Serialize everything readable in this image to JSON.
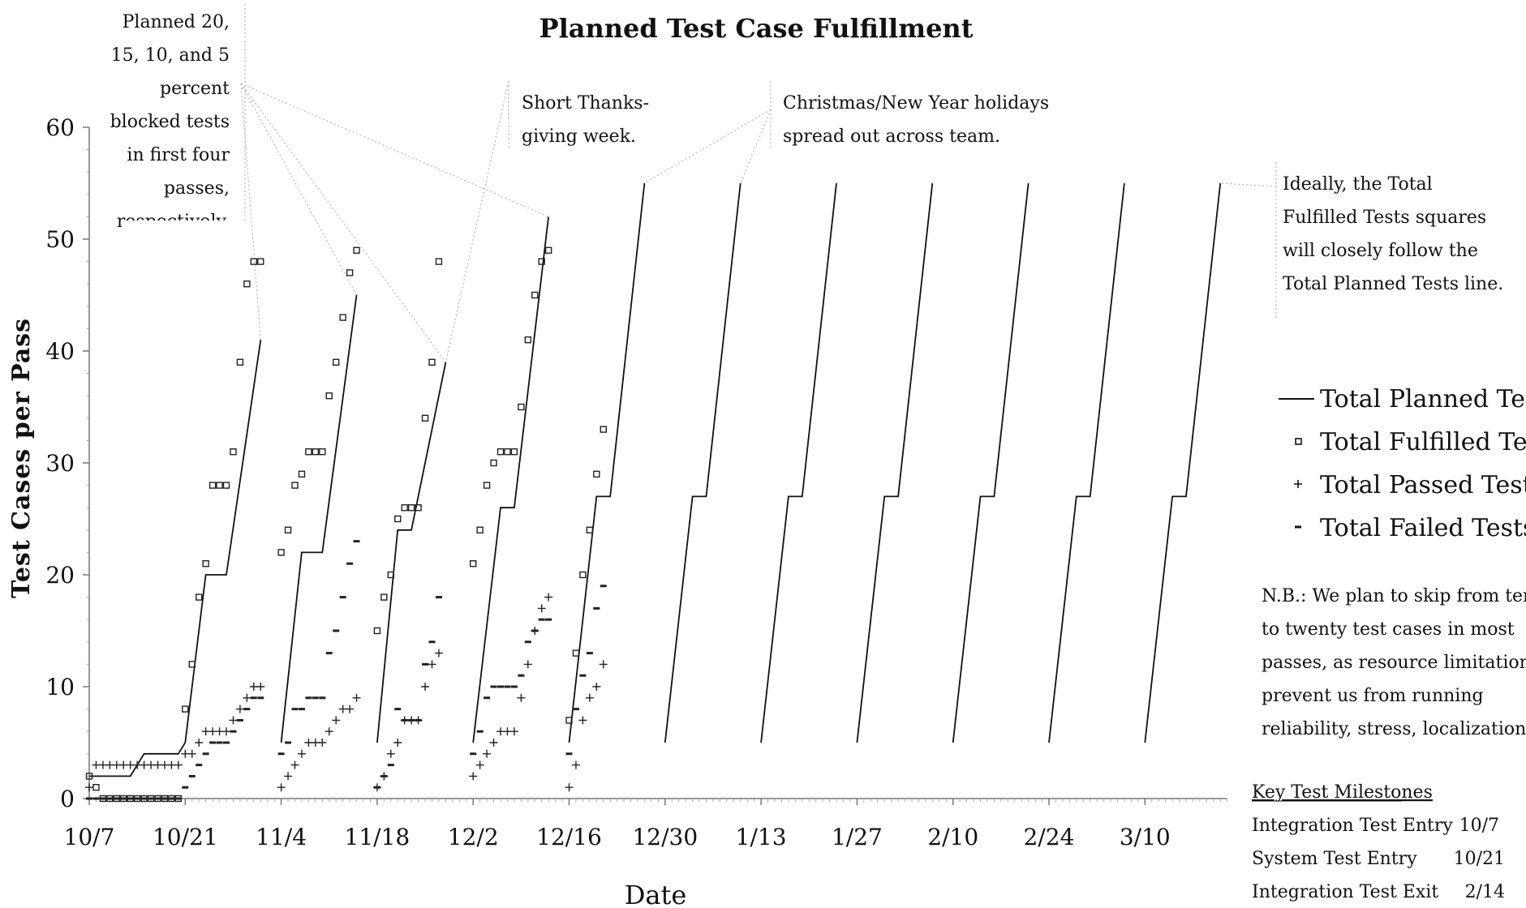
{
  "chart_data": {
    "type": "line",
    "title": "Planned Test Case Fulfillment",
    "xlabel": "Date",
    "ylabel": "Test Cases per Pass",
    "ylim": [
      0,
      60
    ],
    "yticks": [
      0,
      10,
      20,
      30,
      40,
      50,
      60
    ],
    "xticks": [
      "10/7",
      "10/21",
      "11/4",
      "11/18",
      "12/2",
      "12/16",
      "12/30",
      "1/13",
      "1/27",
      "2/10",
      "2/24",
      "3/10"
    ],
    "x_unit": "days from 10/7",
    "legend": {
      "placement": "right",
      "entries": [
        {
          "marker": "line",
          "label": "Total Planned Tests"
        },
        {
          "marker": "square",
          "label": "Total Fulfilled Tests"
        },
        {
          "marker": "plus",
          "label": "Total Passed Tests"
        },
        {
          "marker": "dash",
          "label": "Total Failed Tests"
        }
      ]
    },
    "planned_series": [
      {
        "name": "pass-0",
        "points": [
          [
            0,
            2
          ],
          [
            6,
            2
          ],
          [
            8,
            4
          ],
          [
            13,
            4
          ],
          [
            14,
            5
          ],
          [
            17,
            20
          ],
          [
            20,
            20
          ],
          [
            25,
            41
          ]
        ]
      },
      {
        "name": "pass-1",
        "points": [
          [
            28,
            5
          ],
          [
            31,
            22
          ],
          [
            34,
            22
          ],
          [
            39,
            45
          ]
        ]
      },
      {
        "name": "pass-2",
        "points": [
          [
            42,
            5
          ],
          [
            45,
            24
          ],
          [
            47,
            24
          ],
          [
            52,
            39
          ]
        ]
      },
      {
        "name": "pass-3",
        "points": [
          [
            56,
            5
          ],
          [
            60,
            26
          ],
          [
            62,
            26
          ],
          [
            67,
            52
          ]
        ]
      },
      {
        "name": "pass-4",
        "points": [
          [
            70,
            5
          ],
          [
            74,
            27
          ],
          [
            76,
            27
          ],
          [
            81,
            55
          ]
        ]
      },
      {
        "name": "pass-5",
        "points": [
          [
            84,
            5
          ],
          [
            88,
            27
          ],
          [
            90,
            27
          ],
          [
            95,
            55
          ]
        ]
      },
      {
        "name": "pass-6",
        "points": [
          [
            98,
            5
          ],
          [
            102,
            27
          ],
          [
            104,
            27
          ],
          [
            109,
            55
          ]
        ]
      },
      {
        "name": "pass-7",
        "points": [
          [
            112,
            5
          ],
          [
            116,
            27
          ],
          [
            118,
            27
          ],
          [
            123,
            55
          ]
        ]
      },
      {
        "name": "pass-8",
        "points": [
          [
            126,
            5
          ],
          [
            130,
            27
          ],
          [
            132,
            27
          ],
          [
            137,
            55
          ]
        ]
      },
      {
        "name": "pass-9",
        "points": [
          [
            140,
            5
          ],
          [
            144,
            27
          ],
          [
            146,
            27
          ],
          [
            151,
            55
          ]
        ]
      },
      {
        "name": "pass-10",
        "points": [
          [
            154,
            5
          ],
          [
            158,
            27
          ],
          [
            160,
            27
          ],
          [
            165,
            55
          ]
        ]
      }
    ],
    "fulfilled": [
      [
        0,
        2
      ],
      [
        1,
        1
      ],
      [
        2,
        0
      ],
      [
        3,
        0
      ],
      [
        4,
        0
      ],
      [
        5,
        0
      ],
      [
        6,
        0
      ],
      [
        7,
        0
      ],
      [
        8,
        0
      ],
      [
        9,
        0
      ],
      [
        10,
        0
      ],
      [
        11,
        0
      ],
      [
        12,
        0
      ],
      [
        13,
        0
      ],
      [
        14,
        8
      ],
      [
        15,
        12
      ],
      [
        16,
        18
      ],
      [
        17,
        21
      ],
      [
        18,
        28
      ],
      [
        19,
        28
      ],
      [
        20,
        28
      ],
      [
        21,
        31
      ],
      [
        22,
        39
      ],
      [
        23,
        46
      ],
      [
        24,
        48
      ],
      [
        25,
        48
      ],
      [
        28,
        22
      ],
      [
        29,
        24
      ],
      [
        30,
        28
      ],
      [
        31,
        29
      ],
      [
        32,
        31
      ],
      [
        33,
        31
      ],
      [
        34,
        31
      ],
      [
        35,
        36
      ],
      [
        36,
        39
      ],
      [
        37,
        43
      ],
      [
        38,
        47
      ],
      [
        39,
        49
      ],
      [
        42,
        15
      ],
      [
        43,
        18
      ],
      [
        44,
        20
      ],
      [
        45,
        25
      ],
      [
        46,
        26
      ],
      [
        47,
        26
      ],
      [
        48,
        26
      ],
      [
        49,
        34
      ],
      [
        50,
        39
      ],
      [
        51,
        48
      ],
      [
        56,
        21
      ],
      [
        57,
        24
      ],
      [
        58,
        28
      ],
      [
        59,
        30
      ],
      [
        60,
        31
      ],
      [
        61,
        31
      ],
      [
        62,
        31
      ],
      [
        63,
        35
      ],
      [
        64,
        41
      ],
      [
        65,
        45
      ],
      [
        66,
        48
      ],
      [
        67,
        49
      ],
      [
        70,
        7
      ],
      [
        71,
        13
      ],
      [
        72,
        20
      ],
      [
        73,
        24
      ],
      [
        74,
        29
      ],
      [
        75,
        33
      ]
    ],
    "passed": [
      [
        0,
        1
      ],
      [
        1,
        3
      ],
      [
        2,
        3
      ],
      [
        3,
        3
      ],
      [
        4,
        3
      ],
      [
        5,
        3
      ],
      [
        6,
        3
      ],
      [
        7,
        3
      ],
      [
        8,
        3
      ],
      [
        9,
        3
      ],
      [
        10,
        3
      ],
      [
        11,
        3
      ],
      [
        12,
        3
      ],
      [
        13,
        3
      ],
      [
        14,
        4
      ],
      [
        15,
        4
      ],
      [
        16,
        5
      ],
      [
        17,
        6
      ],
      [
        18,
        6
      ],
      [
        19,
        6
      ],
      [
        20,
        6
      ],
      [
        21,
        7
      ],
      [
        22,
        8
      ],
      [
        23,
        9
      ],
      [
        24,
        10
      ],
      [
        25,
        10
      ],
      [
        28,
        1
      ],
      [
        29,
        2
      ],
      [
        30,
        3
      ],
      [
        31,
        4
      ],
      [
        32,
        5
      ],
      [
        33,
        5
      ],
      [
        34,
        5
      ],
      [
        35,
        6
      ],
      [
        36,
        7
      ],
      [
        37,
        8
      ],
      [
        38,
        8
      ],
      [
        39,
        9
      ],
      [
        42,
        1
      ],
      [
        43,
        2
      ],
      [
        44,
        4
      ],
      [
        45,
        5
      ],
      [
        46,
        7
      ],
      [
        47,
        7
      ],
      [
        48,
        7
      ],
      [
        49,
        10
      ],
      [
        50,
        12
      ],
      [
        51,
        13
      ],
      [
        56,
        2
      ],
      [
        57,
        3
      ],
      [
        58,
        4
      ],
      [
        59,
        5
      ],
      [
        60,
        6
      ],
      [
        61,
        6
      ],
      [
        62,
        6
      ],
      [
        63,
        9
      ],
      [
        64,
        12
      ],
      [
        65,
        15
      ],
      [
        66,
        17
      ],
      [
        67,
        18
      ],
      [
        70,
        1
      ],
      [
        71,
        3
      ],
      [
        72,
        7
      ],
      [
        73,
        9
      ],
      [
        74,
        10
      ],
      [
        75,
        12
      ]
    ],
    "failed": [
      [
        0,
        0
      ],
      [
        1,
        0
      ],
      [
        2,
        0
      ],
      [
        3,
        0
      ],
      [
        4,
        0
      ],
      [
        5,
        0
      ],
      [
        6,
        0
      ],
      [
        7,
        0
      ],
      [
        8,
        0
      ],
      [
        9,
        0
      ],
      [
        10,
        0
      ],
      [
        11,
        0
      ],
      [
        12,
        0
      ],
      [
        13,
        0
      ],
      [
        14,
        1
      ],
      [
        15,
        2
      ],
      [
        16,
        3
      ],
      [
        17,
        4
      ],
      [
        18,
        5
      ],
      [
        19,
        5
      ],
      [
        20,
        5
      ],
      [
        21,
        6
      ],
      [
        22,
        7
      ],
      [
        23,
        8
      ],
      [
        24,
        9
      ],
      [
        25,
        9
      ],
      [
        28,
        4
      ],
      [
        29,
        5
      ],
      [
        30,
        8
      ],
      [
        31,
        8
      ],
      [
        32,
        9
      ],
      [
        33,
        9
      ],
      [
        34,
        9
      ],
      [
        35,
        13
      ],
      [
        36,
        15
      ],
      [
        37,
        18
      ],
      [
        38,
        21
      ],
      [
        39,
        23
      ],
      [
        42,
        1
      ],
      [
        43,
        2
      ],
      [
        44,
        3
      ],
      [
        45,
        8
      ],
      [
        46,
        7
      ],
      [
        47,
        7
      ],
      [
        48,
        7
      ],
      [
        49,
        12
      ],
      [
        50,
        14
      ],
      [
        51,
        18
      ],
      [
        56,
        4
      ],
      [
        57,
        6
      ],
      [
        58,
        9
      ],
      [
        59,
        10
      ],
      [
        60,
        10
      ],
      [
        61,
        10
      ],
      [
        62,
        10
      ],
      [
        63,
        11
      ],
      [
        64,
        14
      ],
      [
        65,
        15
      ],
      [
        66,
        16
      ],
      [
        67,
        16
      ],
      [
        70,
        4
      ],
      [
        71,
        8
      ],
      [
        72,
        11
      ],
      [
        73,
        13
      ],
      [
        74,
        17
      ],
      [
        75,
        19
      ]
    ]
  },
  "annotations": {
    "blocked": [
      "Planned 20,",
      "15, 10, and 5",
      "percent",
      "blocked tests",
      "in first four",
      "passes,",
      "respectively."
    ],
    "thanksgiving": [
      "Short Thanks-",
      "giving week."
    ],
    "holidays": [
      "Christmas/New Year holidays",
      "spread out across team."
    ],
    "ideal": [
      "Ideally, the Total",
      "Fulfilled Tests squares",
      "will closely follow the",
      "Total Planned Tests line."
    ],
    "nb": [
      "N.B.: We plan to skip from ten",
      "to twenty test cases in most",
      "passes, as resource limitations",
      "prevent us from running",
      "reliability, stress, localization,"
    ]
  },
  "milestones": {
    "heading": "Key Test Milestones",
    "rows": [
      {
        "name": "Integration Test Entry",
        "date": "10/7"
      },
      {
        "name": "System Test Entry",
        "date": "10/21"
      },
      {
        "name": "Integration Test Exit",
        "date": "2/14"
      }
    ]
  }
}
